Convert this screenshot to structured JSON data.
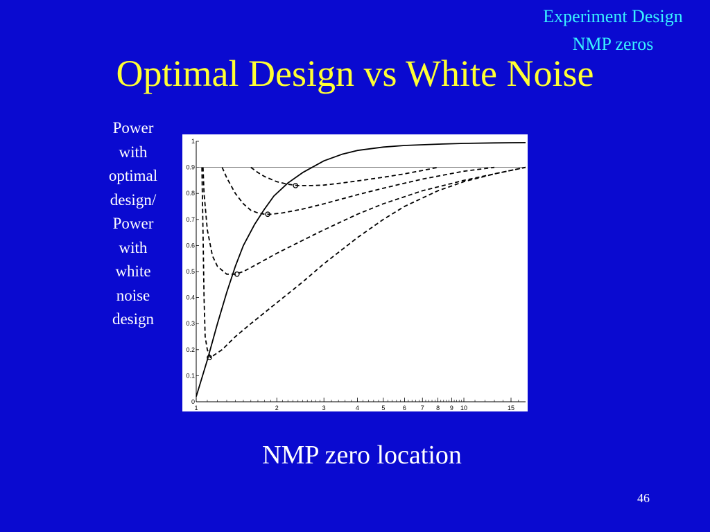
{
  "header": {
    "section_line1": "Experiment Design",
    "section_line2": "NMP zeros"
  },
  "title": "Optimal Design vs White Noise",
  "side_label_lines": [
    "Power",
    "with",
    "optimal",
    "design/",
    "Power",
    "with",
    "white",
    "noise",
    "design"
  ],
  "page_number": "46",
  "colors": {
    "background": "#0a0ad0",
    "title": "#ffff33",
    "section": "#39f2ff",
    "text": "#ffffff",
    "plot_background": "#ffffff",
    "curve": "#000000"
  },
  "chart_data": {
    "type": "line",
    "title": "",
    "xlabel": "NMP zero location",
    "ylabel": "Power with optimal design/Power with white noise design",
    "xscale": "log",
    "xlim": [
      1,
      17
    ],
    "ylim": [
      0,
      1
    ],
    "x_ticks": [
      1,
      2,
      3,
      4,
      5,
      6,
      7,
      8,
      9,
      10,
      15
    ],
    "x_tick_labels": [
      "1",
      "2",
      "3",
      "4",
      "5",
      "6",
      "7",
      "8",
      "9",
      "10",
      "15"
    ],
    "y_ticks": [
      0,
      0.1,
      0.2,
      0.3,
      0.4,
      0.5,
      0.6,
      0.7,
      0.8,
      0.9,
      1
    ],
    "y_tick_labels": [
      "0",
      "0.1",
      "0.2",
      "0.3",
      "0.4",
      "0.5",
      "0.6",
      "0.7",
      "0.8",
      "0.9",
      "1"
    ],
    "reference_line": 0.9,
    "series": [
      {
        "style": "solid",
        "x": [
          1.0,
          1.1,
          1.2,
          1.3,
          1.4,
          1.5,
          1.65,
          1.8,
          1.95,
          2.2,
          2.5,
          3.0,
          3.5,
          4.0,
          5.0,
          6.0,
          8.0,
          10.0,
          13.0,
          17.0
        ],
        "y": [
          0.02,
          0.16,
          0.3,
          0.42,
          0.52,
          0.6,
          0.68,
          0.74,
          0.79,
          0.84,
          0.88,
          0.925,
          0.95,
          0.965,
          0.978,
          0.984,
          0.989,
          0.992,
          0.994,
          0.995
        ]
      },
      {
        "style": "dashed",
        "x": [
          1.05,
          1.06,
          1.07,
          1.08,
          1.1,
          1.13,
          1.17,
          1.25,
          1.4,
          1.6,
          2.0,
          2.5,
          3.0,
          4.0,
          5.0,
          6.0,
          8.0,
          10.0,
          13.0,
          17.0
        ],
        "y": [
          0.9,
          0.65,
          0.4,
          0.25,
          0.2,
          0.17,
          0.18,
          0.2,
          0.25,
          0.3,
          0.38,
          0.46,
          0.53,
          0.63,
          0.7,
          0.75,
          0.81,
          0.845,
          0.875,
          0.9
        ]
      },
      {
        "style": "dashed",
        "x": [
          1.06,
          1.07,
          1.1,
          1.15,
          1.2,
          1.3,
          1.4,
          1.5,
          1.7,
          2.0,
          2.5,
          3.0,
          4.0,
          5.0,
          7.0,
          10.0,
          13.0,
          17.0
        ],
        "y": [
          0.9,
          0.8,
          0.66,
          0.56,
          0.52,
          0.49,
          0.49,
          0.5,
          0.53,
          0.57,
          0.62,
          0.66,
          0.72,
          0.76,
          0.81,
          0.85,
          0.875,
          0.9
        ]
      },
      {
        "style": "dashed",
        "x": [
          1.25,
          1.3,
          1.4,
          1.5,
          1.6,
          1.7,
          1.8,
          1.9,
          2.1,
          2.5,
          3.0,
          4.0,
          5.0,
          7.0,
          10.0,
          13.0
        ],
        "y": [
          0.9,
          0.86,
          0.8,
          0.76,
          0.735,
          0.725,
          0.72,
          0.72,
          0.725,
          0.74,
          0.76,
          0.795,
          0.82,
          0.855,
          0.885,
          0.9
        ]
      },
      {
        "style": "dashed",
        "x": [
          1.6,
          1.7,
          1.8,
          2.0,
          2.2,
          2.4,
          2.7,
          3.0,
          3.5,
          4.0,
          5.0,
          6.0,
          7.0,
          8.0
        ],
        "y": [
          0.9,
          0.88,
          0.865,
          0.845,
          0.835,
          0.83,
          0.83,
          0.832,
          0.84,
          0.848,
          0.862,
          0.875,
          0.888,
          0.9
        ]
      }
    ],
    "markers": {
      "style": "circle",
      "x": [
        1.12,
        1.42,
        1.85,
        2.35
      ],
      "y": [
        0.17,
        0.49,
        0.72,
        0.83
      ]
    }
  }
}
